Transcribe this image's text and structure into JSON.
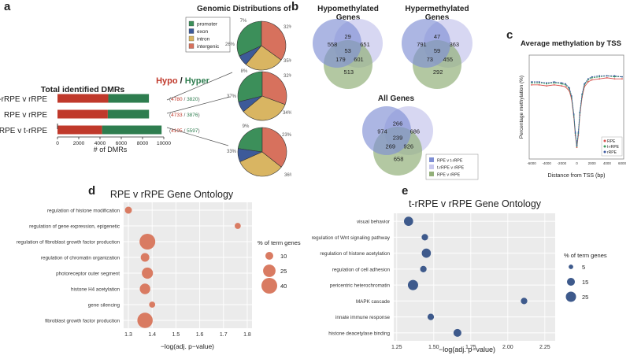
{
  "panels": {
    "a": "a",
    "b": "b",
    "c": "c",
    "d": "d",
    "e": "e"
  },
  "colors": {
    "hypo": "#c0392b",
    "hyper": "#2e7d4f",
    "promoter": "#3c8f5a",
    "exon": "#3d5a99",
    "intron": "#d9b562",
    "intergenic": "#d7715d",
    "venn_blue": "#7f8fd4",
    "venn_lavender": "#c9c9ee",
    "venn_green": "#93b07a",
    "go_d": "#d97b62",
    "go_e": "#3e5a8c",
    "go_bg": "#ebebeb"
  },
  "chart_data": [
    {
      "id": "a_bar",
      "type": "bar",
      "title": "Total identified DMRs",
      "legend": {
        "hypo": "Hypo",
        "sep": " / ",
        "hyper": "Hyper"
      },
      "xlabel": "# of DMRs",
      "xlim": [
        0,
        10000
      ],
      "xticks": [
        "0",
        "2000",
        "4000",
        "6000",
        "8000",
        "10000"
      ],
      "categories": [
        "t-rRPE v rRPE",
        "RPE v rRPE",
        "RPE v t-rRPE"
      ],
      "series": [
        {
          "name": "Hypo",
          "values": [
            4780,
            4733,
            4195
          ]
        },
        {
          "name": "Hyper",
          "values": [
            3820,
            3876,
            5597
          ]
        }
      ],
      "labels": [
        {
          "hypo": "4780",
          "hyper": "3820"
        },
        {
          "hypo": "4733",
          "hyper": "3876"
        },
        {
          "hypo": "4195",
          "hyper": "5597"
        }
      ]
    },
    {
      "id": "a_pie",
      "type": "pie",
      "title": "Genomic Distributions of DMRs",
      "legend": [
        "promoter",
        "exon",
        "intron",
        "intergenic"
      ],
      "pies": [
        {
          "labels": [
            "32%",
            "7%",
            "26%",
            "35%"
          ],
          "values": [
            32,
            7,
            26,
            35
          ]
        },
        {
          "labels": [
            "32%",
            "8%",
            "37%",
            "34%"
          ],
          "values": [
            32,
            8,
            37,
            34
          ]
        },
        {
          "labels": [
            "23%",
            "9%",
            "33%",
            "36%"
          ],
          "values": [
            23,
            9,
            33,
            36
          ]
        }
      ]
    },
    {
      "id": "b_venn",
      "type": "venn",
      "diagrams": [
        {
          "title1": "Hypomethylated",
          "title2": "Genes",
          "regions": [
            "558",
            "29",
            "651",
            "53",
            "179",
            "601",
            "513"
          ]
        },
        {
          "title1": "Hypermethylated",
          "title2": "Genes",
          "regions": [
            "791",
            "47",
            "363",
            "59",
            "73",
            "455",
            "292"
          ]
        },
        {
          "title1": "All Genes",
          "title2": "",
          "regions": [
            "974",
            "266",
            "686",
            "239",
            "269",
            "926",
            "658"
          ]
        }
      ],
      "legend": [
        "RPE v t-rRPE",
        "t-rRPE v rRPE",
        "RPE v rRPE"
      ]
    },
    {
      "id": "c_line",
      "type": "line",
      "title": "Average methylation by TSS",
      "xlabel": "Distance from TSS (bp)",
      "ylabel": "Percentage methylation (%)",
      "xlim": [
        -6000,
        6000
      ],
      "xticks": [
        "-6000",
        "-4000",
        "-2000",
        "0",
        "2000",
        "4000",
        "6000"
      ],
      "x": [
        -6000,
        -5000,
        -4000,
        -3000,
        -2000,
        -1500,
        -1000,
        -700,
        -400,
        -200,
        0,
        200,
        400,
        700,
        1000,
        1500,
        2000,
        3000,
        4000,
        5000,
        6000
      ],
      "series": [
        {
          "name": "RPE",
          "color": "#d9534f",
          "values": [
            0.72,
            0.72,
            0.71,
            0.72,
            0.71,
            0.7,
            0.66,
            0.58,
            0.4,
            0.22,
            0.1,
            0.22,
            0.42,
            0.6,
            0.7,
            0.75,
            0.77,
            0.78,
            0.79,
            0.78,
            0.78
          ]
        },
        {
          "name": "t-rRPE",
          "color": "#3a9a5a",
          "values": [
            0.74,
            0.74,
            0.73,
            0.74,
            0.73,
            0.72,
            0.68,
            0.6,
            0.42,
            0.24,
            0.11,
            0.24,
            0.44,
            0.62,
            0.72,
            0.77,
            0.79,
            0.8,
            0.81,
            0.8,
            0.8
          ]
        },
        {
          "name": "rRPE",
          "color": "#3d5aa0",
          "values": [
            0.75,
            0.75,
            0.74,
            0.75,
            0.74,
            0.73,
            0.69,
            0.61,
            0.43,
            0.25,
            0.12,
            0.25,
            0.45,
            0.63,
            0.73,
            0.78,
            0.8,
            0.81,
            0.81,
            0.81,
            0.8
          ]
        }
      ],
      "ylim": [
        0,
        1
      ]
    },
    {
      "id": "d_go",
      "type": "scatter",
      "title": "RPE v rRPE Gene Ontology",
      "xlabel": "−log(adj. p−value)",
      "xlim": [
        1.28,
        1.82
      ],
      "xticks": [
        1.3,
        1.4,
        1.5,
        1.6,
        1.7,
        1.8
      ],
      "xtick_labels": [
        "1.3",
        "1.4",
        "1.5",
        "1.6",
        "1.7",
        "1.8"
      ],
      "size_legend_title": "% of term genes",
      "size_legend": [
        {
          "label": "10",
          "value": 10
        },
        {
          "label": "25",
          "value": 25
        },
        {
          "label": "40",
          "value": 40
        }
      ],
      "terms": [
        "regulation of histone modification",
        "regulation of gene expression, epigenetic",
        "regulation of fibroblast growth factor production",
        "regulation of chromatin organization",
        "photoreceptor outer segment",
        "histone H4 acetylation",
        "gene silencing",
        "fibroblast growth factor production"
      ],
      "x": [
        1.3,
        1.76,
        1.38,
        1.37,
        1.38,
        1.37,
        1.4,
        1.37
      ],
      "pct": [
        8,
        6,
        40,
        12,
        20,
        18,
        6,
        38
      ]
    },
    {
      "id": "e_go",
      "type": "scatter",
      "title": "t-rRPE v rRPE Gene Ontology",
      "xlabel": "−log(adj. p−value)",
      "xlim": [
        1.23,
        2.32
      ],
      "xticks": [
        1.25,
        1.5,
        1.75,
        2.0,
        2.25
      ],
      "xtick_labels": [
        "1.25",
        "1.50",
        "1.75",
        "2.00",
        "2.25"
      ],
      "size_legend_title": "% of term genes",
      "size_legend": [
        {
          "label": "5",
          "value": 5
        },
        {
          "label": "15",
          "value": 15
        },
        {
          "label": "25",
          "value": 25
        }
      ],
      "terms": [
        "visual behavior",
        "regulation of Wnt signaling pathway",
        "regulation of histone acetylation",
        "regulation of cell adhesion",
        "pericentric heterochromatin",
        "MAPK cascade",
        "innate immune response",
        "histone deacetylase binding"
      ],
      "x": [
        1.33,
        1.44,
        1.45,
        1.43,
        1.36,
        2.11,
        1.48,
        1.66
      ],
      "pct": [
        20,
        10,
        20,
        10,
        25,
        10,
        10,
        15
      ]
    }
  ]
}
